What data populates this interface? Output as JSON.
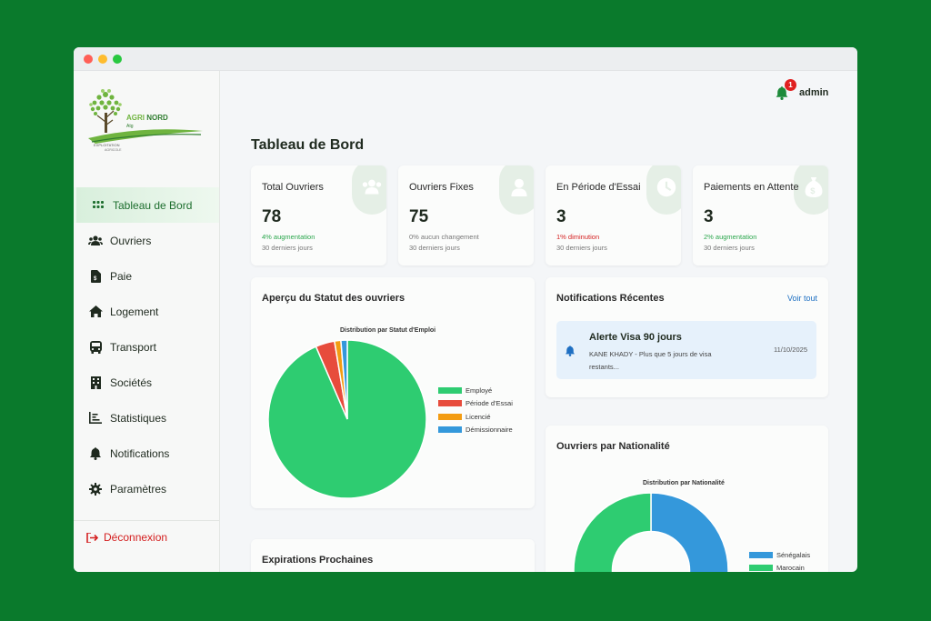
{
  "brand": {
    "name_part1": "AGRI",
    "name_part2": "NORD",
    "sub": "Atg",
    "tagline1": "EXPLOITATION",
    "tagline2": "AGRICOLE"
  },
  "sidebar": {
    "items": [
      {
        "label": "Tableau de Bord",
        "icon": "grid-icon",
        "active": true
      },
      {
        "label": "Ouvriers",
        "icon": "users-icon"
      },
      {
        "label": "Paie",
        "icon": "payslip-icon"
      },
      {
        "label": "Logement",
        "icon": "home-icon"
      },
      {
        "label": "Transport",
        "icon": "bus-icon"
      },
      {
        "label": "Sociétés",
        "icon": "building-icon"
      },
      {
        "label": "Statistiques",
        "icon": "bar-chart-icon"
      },
      {
        "label": "Notifications",
        "icon": "bell-icon"
      },
      {
        "label": "Paramètres",
        "icon": "gear-icon"
      }
    ],
    "logout_label": "Déconnexion"
  },
  "header": {
    "notification_count": "1",
    "username": "admin"
  },
  "page_title": "Tableau de Bord",
  "stats": [
    {
      "label": "Total Ouvriers",
      "value": "78",
      "change": "4% augmentation",
      "trend": "up",
      "period": "30 derniers jours",
      "icon": "users-icon"
    },
    {
      "label": "Ouvriers Fixes",
      "value": "75",
      "change": "0% aucun changement",
      "trend": "flat",
      "period": "30 derniers jours",
      "icon": "user-icon"
    },
    {
      "label": "En Période d'Essai",
      "value": "3",
      "change": "1% diminution",
      "trend": "down",
      "period": "30 derniers jours",
      "icon": "clock-icon"
    },
    {
      "label": "Paiements en Attente",
      "value": "3",
      "change": "2% augmentation",
      "trend": "up",
      "period": "30 derniers jours",
      "icon": "money-bag-icon"
    }
  ],
  "status_panel": {
    "title": "Aperçu du Statut des ouvriers"
  },
  "notifications_panel": {
    "title": "Notifications Récentes",
    "see_all": "Voir tout",
    "items": [
      {
        "title": "Alerte Visa 90 jours",
        "body": "KANE KHADY - Plus que 5 jours de visa restants...",
        "date": "11/10/2025"
      }
    ]
  },
  "nationality_panel": {
    "title": "Ouvriers par Nationalité"
  },
  "expirations_panel": {
    "title": "Expirations Prochaines"
  },
  "colors": {
    "accent": "#2ecc71",
    "brand_green": "#0a7a2c",
    "danger": "#e74c3c",
    "warning": "#f39c12",
    "info": "#3498db"
  },
  "chart_data": [
    {
      "type": "pie",
      "title": "Distribution par Statut d'Emploi",
      "categories": [
        "Employé",
        "Période d'Essai",
        "Licencié",
        "Démissionnaire"
      ],
      "values": [
        72,
        3,
        1,
        1
      ],
      "colors": [
        "#2ecc71",
        "#e74c3c",
        "#f39c12",
        "#3498db"
      ],
      "legend_position": "right"
    },
    {
      "type": "pie",
      "donut": true,
      "title": "Distribution par Nationalité",
      "categories": [
        "Sénégalais",
        "Marocain"
      ],
      "values": [
        50,
        50
      ],
      "colors": [
        "#3498db",
        "#2ecc71"
      ],
      "legend_position": "right"
    }
  ]
}
